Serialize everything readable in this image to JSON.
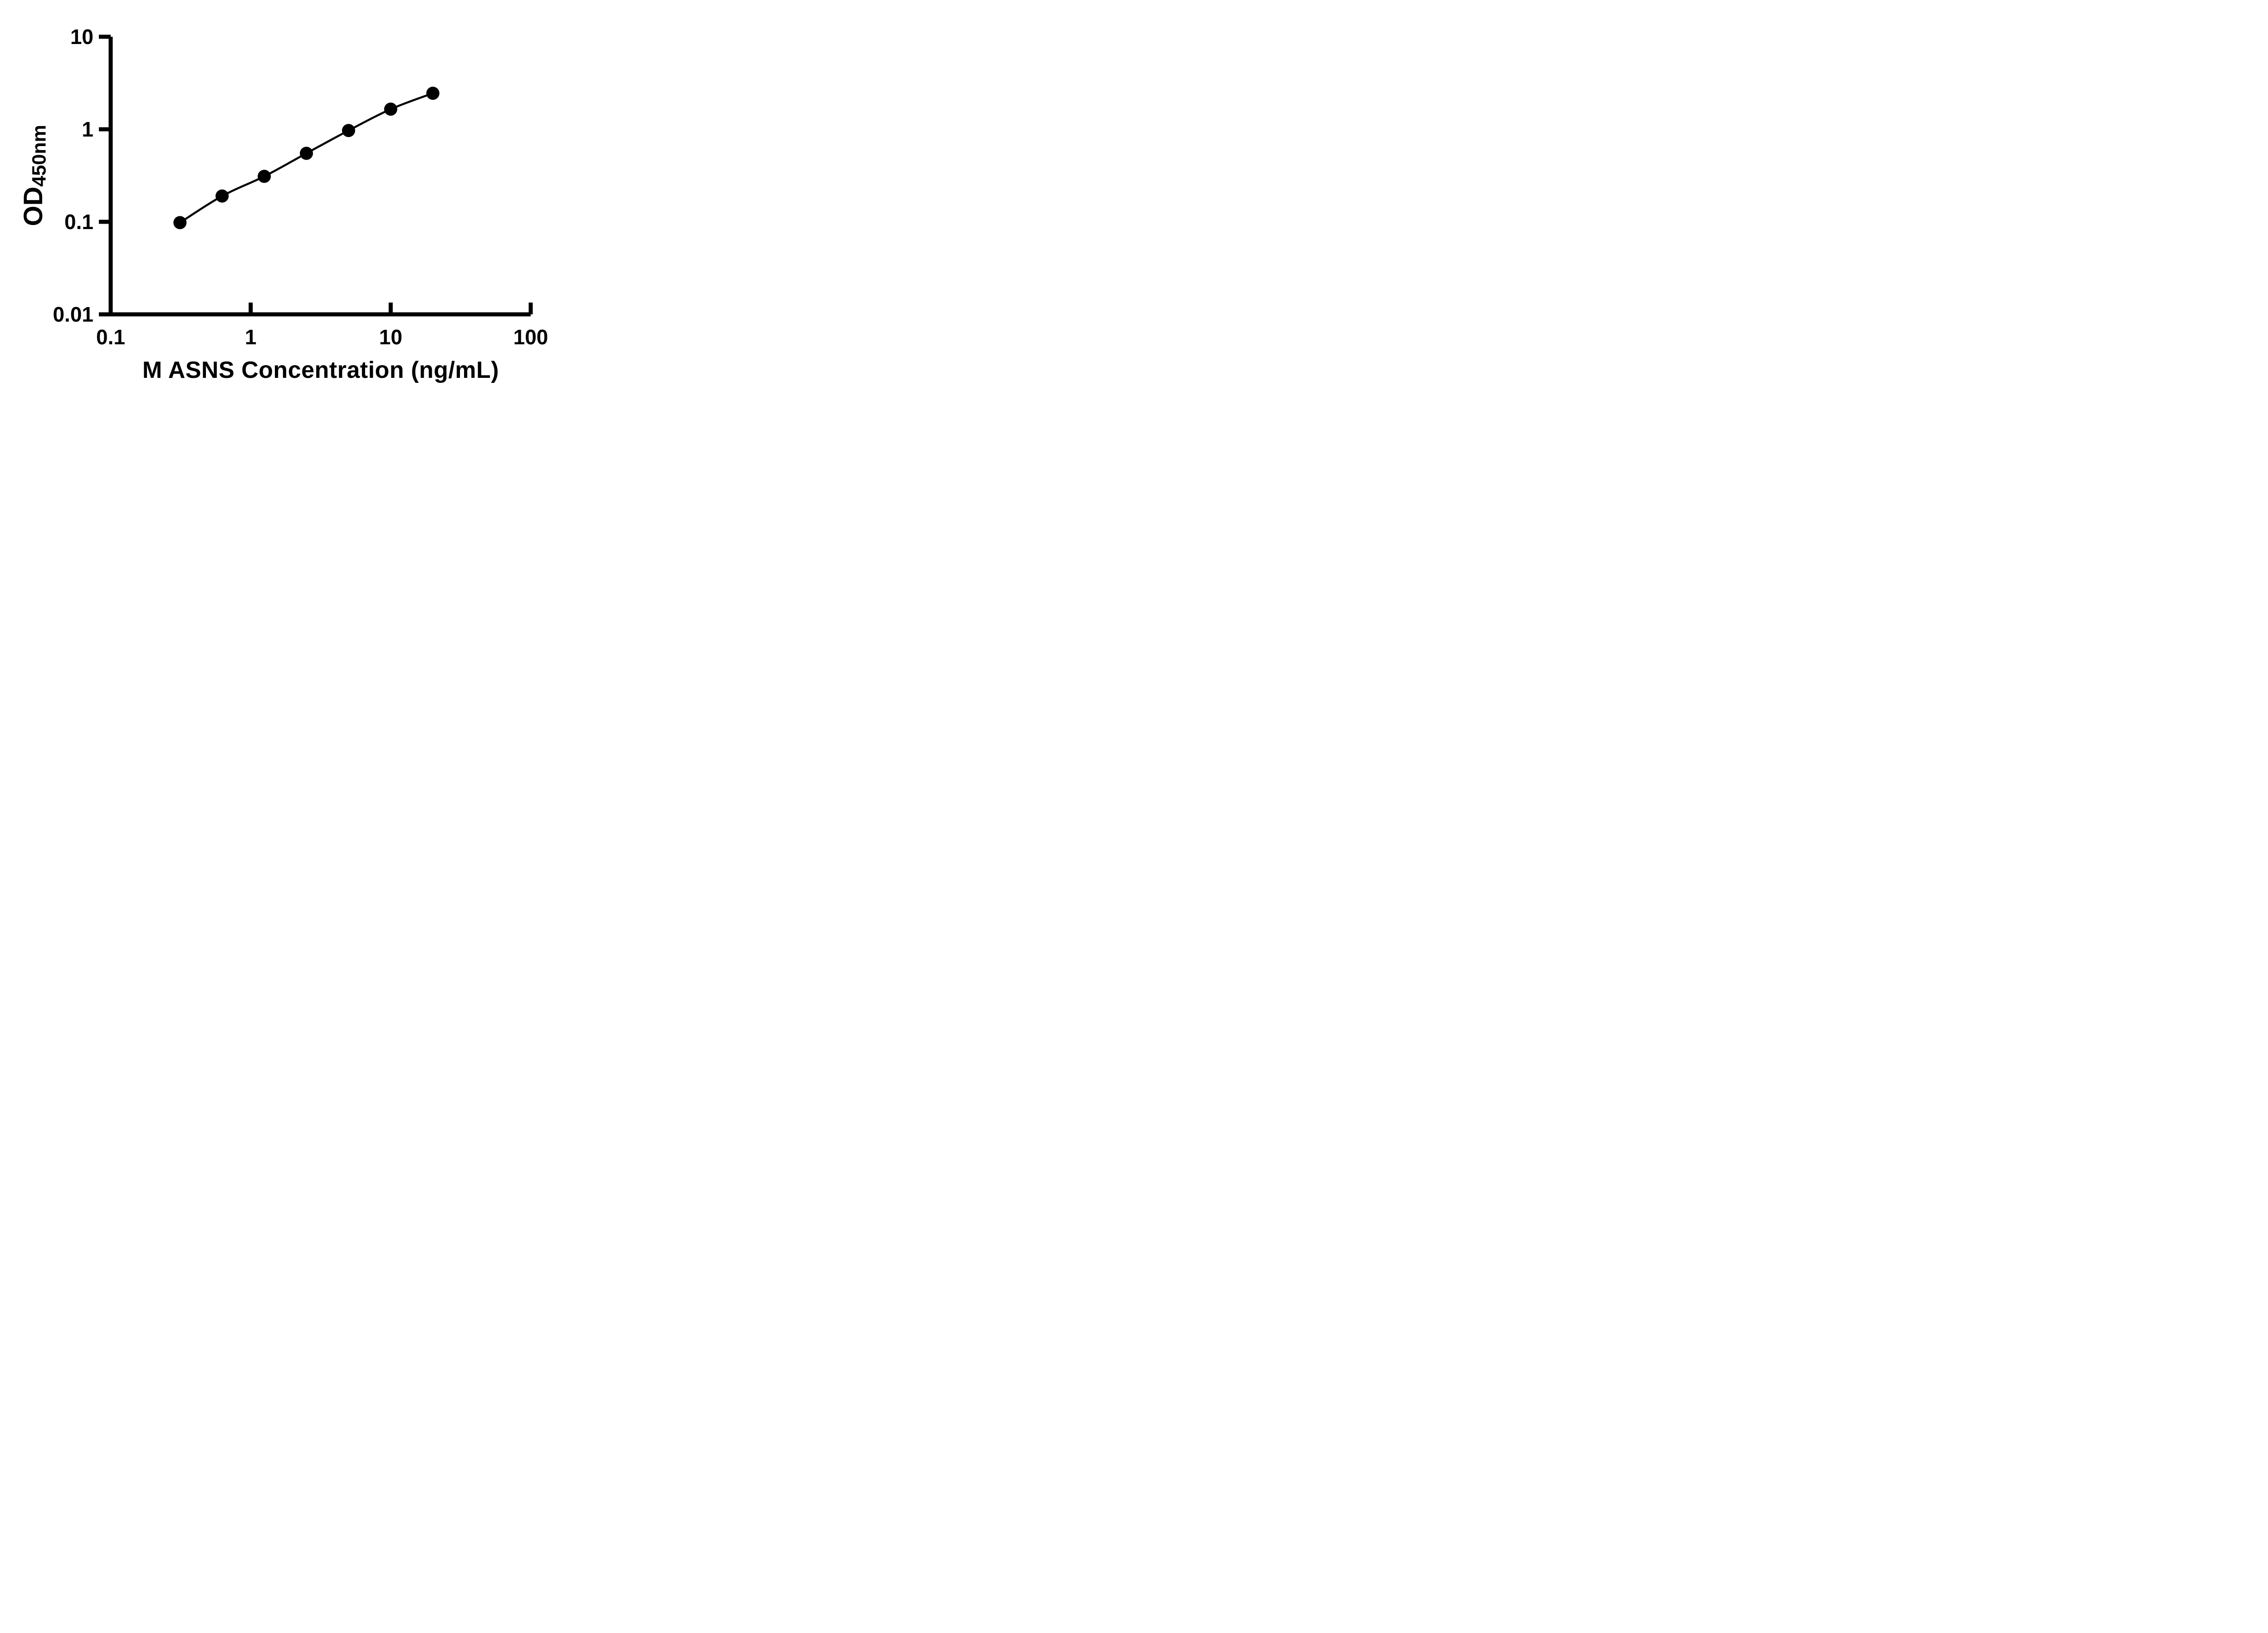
{
  "figure": {
    "background": "#ffffff"
  },
  "chart_data": {
    "type": "line",
    "title": "",
    "xlabel": "M ASNS Concentration (ng/mL)",
    "ylabel": "OD450nm",
    "ylabel_main": "OD",
    "ylabel_sub": "450nm",
    "x_scale": "log10",
    "y_scale": "log10",
    "xlim": [
      0.1,
      100
    ],
    "ylim": [
      0.01,
      10
    ],
    "x_ticks": [
      0.1,
      1,
      10,
      100
    ],
    "x_tick_labels": [
      "0.1",
      "1",
      "10",
      "100"
    ],
    "y_ticks": [
      0.01,
      0.1,
      1,
      10
    ],
    "y_tick_labels": [
      "0.01",
      "0.1",
      "1",
      "10"
    ],
    "x": [
      0.3125,
      0.625,
      1.25,
      2.5,
      5,
      10,
      20
    ],
    "y": [
      0.098,
      0.19,
      0.31,
      0.55,
      0.97,
      1.65,
      2.45
    ],
    "marker": "filled-circle",
    "grid": false,
    "legend": "none",
    "colors": {
      "axis": "#000000",
      "line": "#000000",
      "marker": "#000000",
      "text": "#000000",
      "background": "#ffffff"
    }
  }
}
